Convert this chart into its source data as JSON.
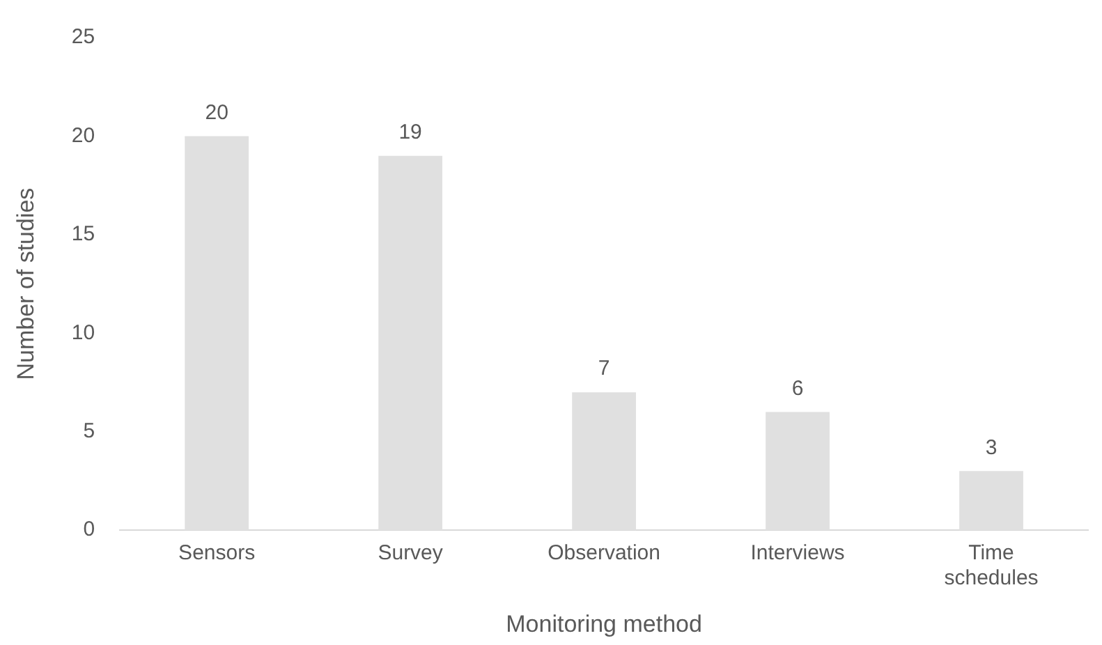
{
  "chart_data": {
    "type": "bar",
    "xlabel": "Monitoring method",
    "ylabel": "Number of studies",
    "categories": [
      "Sensors",
      "Survey",
      "Observation",
      "Interviews",
      "Time schedules"
    ],
    "values": [
      20,
      19,
      7,
      6,
      3
    ],
    "color": "#e0e0e0",
    "ylim": [
      0,
      25
    ],
    "yticks": [
      0,
      5,
      10,
      15,
      20,
      25
    ],
    "grid": false,
    "legend": false,
    "data_labels": true
  }
}
